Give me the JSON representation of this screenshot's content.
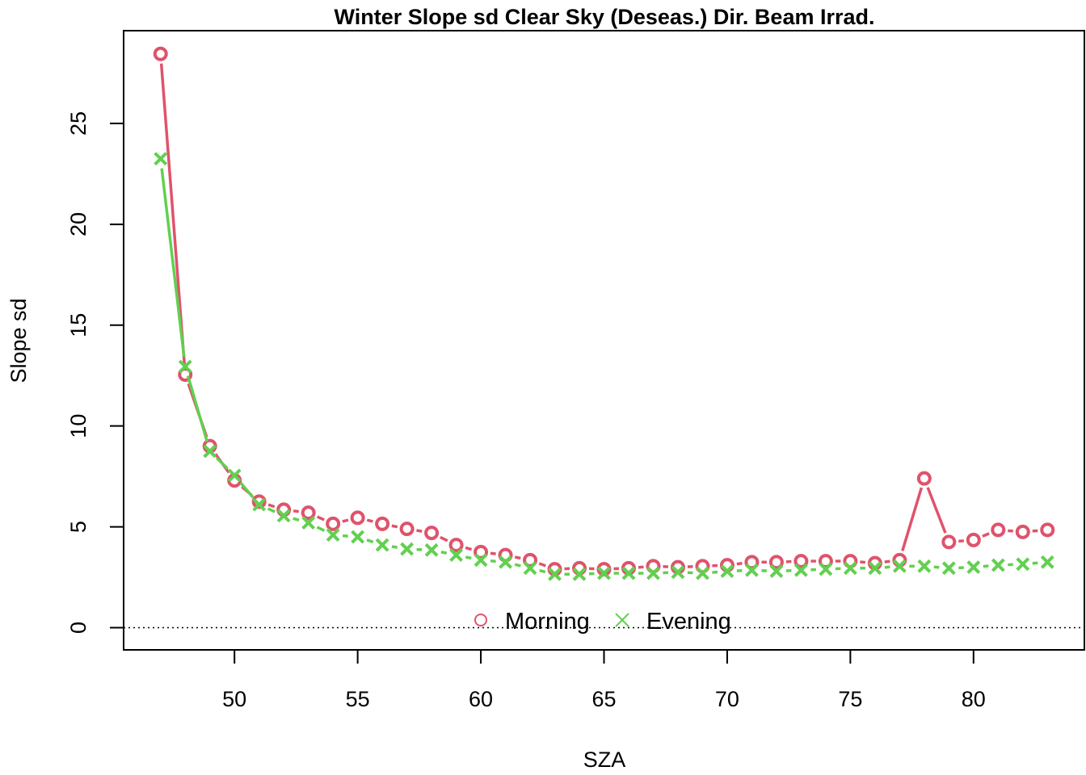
{
  "chart_data": {
    "type": "line",
    "title": "Winter Slope sd Clear Sky (Deseas.) Dir. Beam Irrad.",
    "xlabel": "SZA",
    "ylabel": "Slope sd",
    "xlim": [
      45.5,
      84.5
    ],
    "ylim": [
      -1.1,
      29.6
    ],
    "xticks": [
      50,
      55,
      60,
      65,
      70,
      75,
      80
    ],
    "yticks": [
      0,
      5,
      10,
      15,
      20,
      25
    ],
    "reference_line": {
      "y": 0,
      "style": "dotted"
    },
    "legend_position": "bottom-center",
    "grid": false,
    "series": [
      {
        "name": "Morning",
        "marker": "circle",
        "color": "#DF536B",
        "x": [
          47,
          48,
          49,
          50,
          51,
          52,
          53,
          54,
          55,
          56,
          57,
          58,
          59,
          60,
          61,
          62,
          63,
          64,
          65,
          66,
          67,
          68,
          69,
          70,
          71,
          72,
          73,
          74,
          75,
          76,
          77,
          78,
          79,
          80,
          81,
          82,
          83
        ],
        "values": [
          28.45,
          12.55,
          9.0,
          7.3,
          6.25,
          5.85,
          5.7,
          5.15,
          5.45,
          5.15,
          4.9,
          4.7,
          4.1,
          3.75,
          3.6,
          3.35,
          2.9,
          2.95,
          2.9,
          2.95,
          3.05,
          3.0,
          3.05,
          3.1,
          3.25,
          3.25,
          3.3,
          3.3,
          3.3,
          3.2,
          3.35,
          7.4,
          4.25,
          4.35,
          4.85,
          4.75,
          4.85
        ]
      },
      {
        "name": "Evening",
        "marker": "cross",
        "color": "#61D04F",
        "x": [
          47,
          48,
          49,
          50,
          51,
          52,
          53,
          54,
          55,
          56,
          57,
          58,
          59,
          60,
          61,
          62,
          63,
          64,
          65,
          66,
          67,
          68,
          69,
          70,
          71,
          72,
          73,
          74,
          75,
          76,
          77,
          78,
          79,
          80,
          81,
          82,
          83
        ],
        "values": [
          23.25,
          12.95,
          8.75,
          7.55,
          6.1,
          5.55,
          5.2,
          4.6,
          4.5,
          4.1,
          3.9,
          3.85,
          3.6,
          3.35,
          3.25,
          2.95,
          2.65,
          2.65,
          2.7,
          2.7,
          2.7,
          2.75,
          2.7,
          2.8,
          2.85,
          2.8,
          2.85,
          2.9,
          2.95,
          2.95,
          3.05,
          3.05,
          2.95,
          3.0,
          3.1,
          3.15,
          3.25
        ]
      }
    ]
  }
}
